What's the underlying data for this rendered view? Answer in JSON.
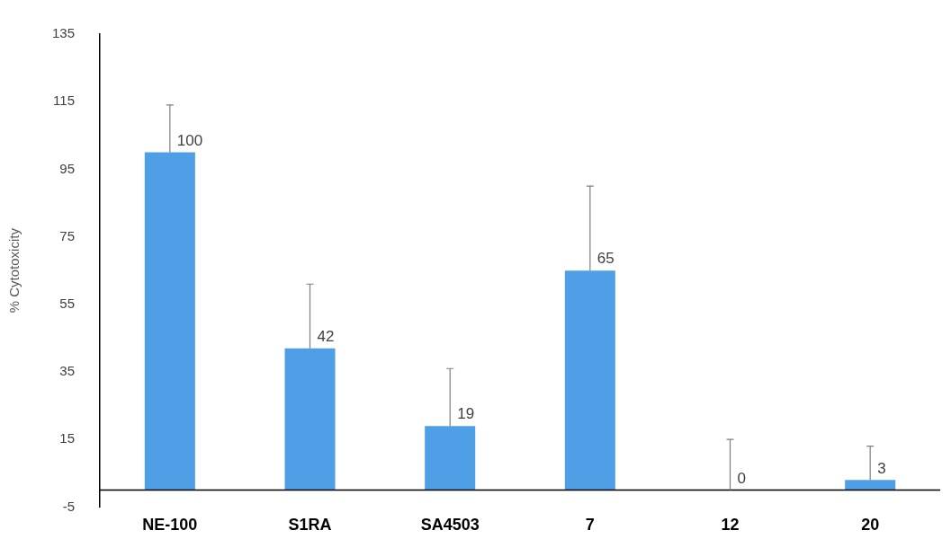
{
  "chart_data": {
    "type": "bar",
    "ylabel": "% Cytotoxicity",
    "categories": [
      "NE-100",
      "S1RA",
      "SA4503",
      "7",
      "12",
      "20"
    ],
    "values": [
      100,
      42,
      19,
      65,
      0,
      3
    ],
    "errors": [
      [
        100,
        114
      ],
      [
        42,
        61
      ],
      [
        19,
        36
      ],
      [
        65,
        90
      ],
      [
        0,
        15
      ],
      [
        3,
        13
      ]
    ],
    "color": "#4f9fe6",
    "ylim": [
      -5,
      135
    ],
    "yticks": [
      -5,
      15,
      35,
      55,
      75,
      95,
      115,
      135
    ],
    "grid": false,
    "legend": false,
    "data_labels": true
  }
}
